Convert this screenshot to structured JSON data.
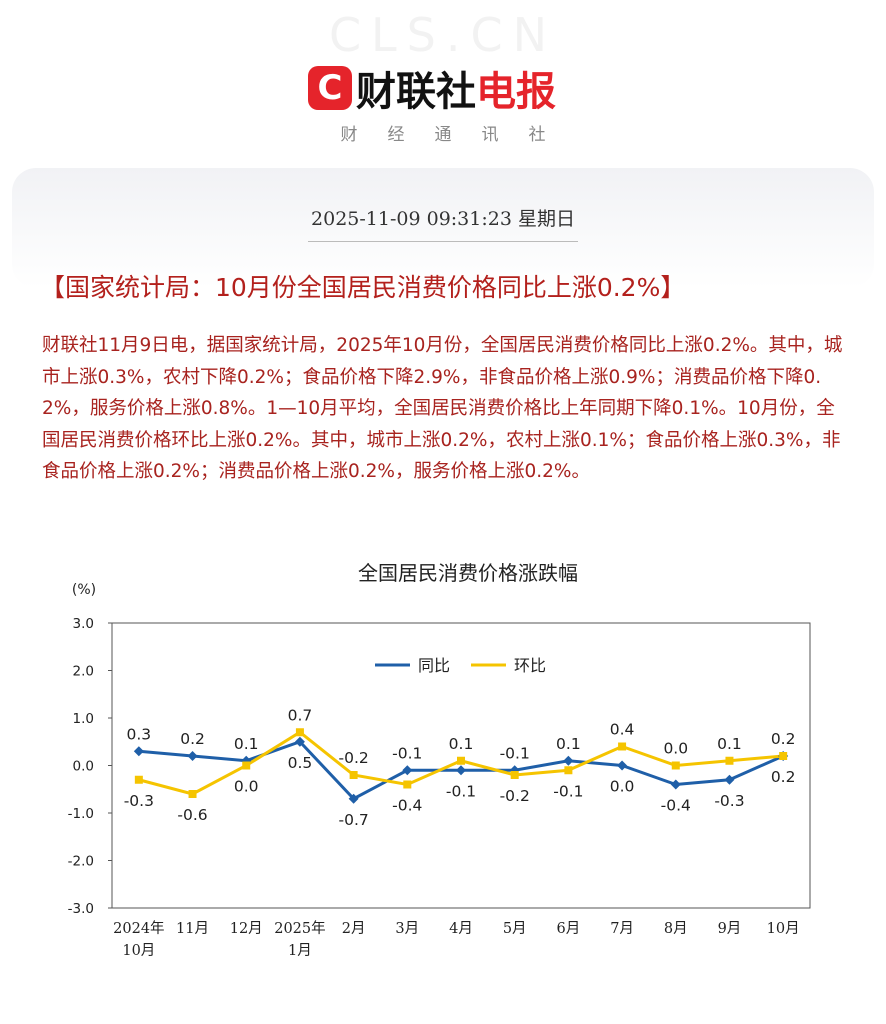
{
  "header": {
    "watermark": "CLS.CN",
    "logo_icon": "C",
    "logo_name": "财联社",
    "logo_tag": "电报",
    "slogan": "财经通讯社"
  },
  "article": {
    "datetime": "2025-11-09 09:31:23 星期日",
    "title": "【国家统计局：10月份全国居民消费价格同比上涨0.2%】",
    "body": "财联社11月9日电，据国家统计局，2025年10月份，全国居民消费价格同比上涨0.2%。其中，城市上涨0.3%，农村下降0.2%；食品价格下降2.9%，非食品价格上涨0.9%；消费品价格下降0.2%，服务价格上涨0.8%。1—10月平均，全国居民消费价格比上年同期下降0.1%。10月份，全国居民消费价格环比上涨0.2%。其中，城市上涨0.2%，农村上涨0.1%；食品价格上涨0.3%，非食品价格上涨0.2%；消费品价格上涨0.2%，服务价格上涨0.2%。"
  },
  "chart_data": {
    "type": "line",
    "title": "全国居民消费价格涨跌幅",
    "y_label": "(%)",
    "categories": [
      "2024年\n10月",
      "11月",
      "12月",
      "2025年\n1月",
      "2月",
      "3月",
      "4月",
      "5月",
      "6月",
      "7月",
      "8月",
      "9月",
      "10月"
    ],
    "series": [
      {
        "name": "同比",
        "color": "#1f5fa8",
        "marker": "diamond",
        "values": [
          0.3,
          0.2,
          0.1,
          0.5,
          -0.7,
          -0.1,
          -0.1,
          -0.1,
          0.1,
          0,
          -0.4,
          -0.3,
          0.2
        ],
        "value_labels": [
          "0.3",
          "0.2",
          "0.1",
          "0.5",
          "-0.7",
          "-0.1",
          "-0.1",
          "-0.1",
          "0.1",
          "0.0",
          "-0.4",
          "-0.3",
          "0.2"
        ]
      },
      {
        "name": "环比",
        "color": "#f5c400",
        "marker": "square",
        "values": [
          -0.3,
          -0.6,
          0,
          0.7,
          -0.2,
          -0.4,
          0.1,
          -0.2,
          -0.1,
          0.4,
          0,
          0.1,
          0.2
        ],
        "value_labels": [
          "-0.3",
          "-0.6",
          "0.0",
          "0.7",
          "-0.2",
          "-0.4",
          "0.1",
          "-0.2",
          "-0.1",
          "0.4",
          "0.0",
          "0.1",
          "0.2"
        ]
      }
    ],
    "ylim": [
      -3,
      3
    ],
    "yticks": [
      {
        "value": -3,
        "label": "-3.0"
      },
      {
        "value": -2,
        "label": "-2.0"
      },
      {
        "value": -1,
        "label": "-1.0"
      },
      {
        "value": 0,
        "label": "0.0"
      },
      {
        "value": 1,
        "label": "1.0"
      },
      {
        "value": 2,
        "label": "2.0"
      },
      {
        "value": 3,
        "label": "3.0"
      }
    ],
    "grid": false
  }
}
